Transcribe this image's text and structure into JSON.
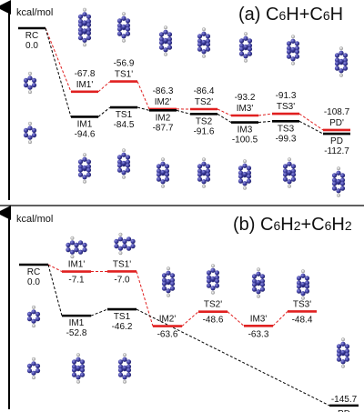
{
  "chart_data": [
    {
      "type": "line",
      "panel_label": "(a) C6H+C6H",
      "ylabel": "kcal/mol",
      "paths": [
        {
          "name": "primed",
          "color": "#e02020",
          "states": [
            {
              "label": "RC",
              "energy": 0.0
            },
            {
              "label": "IM1'",
              "energy": -67.8
            },
            {
              "label": "TS1'",
              "energy": -56.9
            },
            {
              "label": "IM2'",
              "energy": -86.3
            },
            {
              "label": "TS2'",
              "energy": -86.4
            },
            {
              "label": "IM3'",
              "energy": -93.2
            },
            {
              "label": "TS3'",
              "energy": -91.3
            },
            {
              "label": "PD'",
              "energy": -108.7
            }
          ]
        },
        {
          "name": "unprimed",
          "color": "#000000",
          "states": [
            {
              "label": "IM1",
              "energy": -94.6
            },
            {
              "label": "TS1",
              "energy": -84.5
            },
            {
              "label": "IM2",
              "energy": -87.7
            },
            {
              "label": "TS2",
              "energy": -91.6
            },
            {
              "label": "IM3",
              "energy": -100.5
            },
            {
              "label": "TS3",
              "energy": -99.3
            },
            {
              "label": "PD",
              "energy": -112.7
            }
          ]
        }
      ]
    },
    {
      "type": "line",
      "panel_label": "(b) C6H2+C6H2",
      "ylabel": "kcal/mol",
      "paths": [
        {
          "name": "primed",
          "color": "#e02020",
          "states": [
            {
              "label": "RC",
              "energy": 0.0
            },
            {
              "label": "IM1'",
              "energy": -7.1
            },
            {
              "label": "TS1'",
              "energy": -7.0
            },
            {
              "label": "IM2'",
              "energy": -63.6
            },
            {
              "label": "TS2'",
              "energy": -48.6
            },
            {
              "label": "IM3'",
              "energy": -63.3
            },
            {
              "label": "TS3'",
              "energy": -48.4
            }
          ]
        },
        {
          "name": "unprimed",
          "color": "#000000",
          "states": [
            {
              "label": "IM1",
              "energy": -52.8
            },
            {
              "label": "TS1",
              "energy": -46.2
            },
            {
              "label": "PD",
              "energy": -145.7
            }
          ]
        }
      ]
    }
  ],
  "colors": {
    "primed": "#e02020",
    "unprimed": "#000000",
    "atom": "#3a3a9c",
    "hydrogen": "#cfcfcf"
  }
}
